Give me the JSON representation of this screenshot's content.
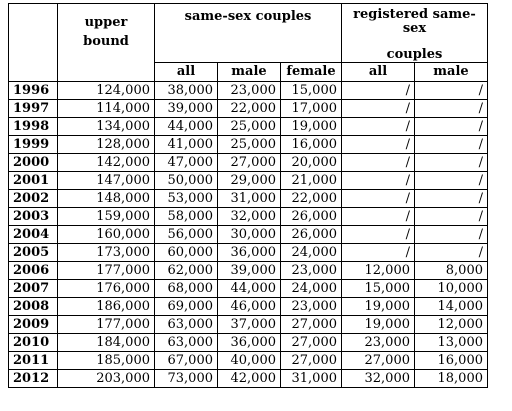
{
  "table": {
    "header": {
      "upper_bound_line1": "upper",
      "upper_bound_line2": "bound",
      "same_sex": "same-sex couples",
      "registered_line1": "registered same-sex",
      "registered_line2": "couples",
      "sub": [
        "all",
        "male",
        "female",
        "all",
        "male"
      ]
    },
    "rows": [
      {
        "year": "1996",
        "cells": [
          "124,000",
          "38,000",
          "23,000",
          "15,000",
          "/",
          "/"
        ]
      },
      {
        "year": "1997",
        "cells": [
          "114,000",
          "39,000",
          "22,000",
          "17,000",
          "/",
          "/"
        ]
      },
      {
        "year": "1998",
        "cells": [
          "134,000",
          "44,000",
          "25,000",
          "19,000",
          "/",
          "/"
        ]
      },
      {
        "year": "1999",
        "cells": [
          "128,000",
          "41,000",
          "25,000",
          "16,000",
          "/",
          "/"
        ]
      },
      {
        "year": "2000",
        "cells": [
          "142,000",
          "47,000",
          "27,000",
          "20,000",
          "/",
          "/"
        ]
      },
      {
        "year": "2001",
        "cells": [
          "147,000",
          "50,000",
          "29,000",
          "21,000",
          "/",
          "/"
        ]
      },
      {
        "year": "2002",
        "cells": [
          "148,000",
          "53,000",
          "31,000",
          "22,000",
          "/",
          "/"
        ]
      },
      {
        "year": "2003",
        "cells": [
          "159,000",
          "58,000",
          "32,000",
          "26,000",
          "/",
          "/"
        ]
      },
      {
        "year": "2004",
        "cells": [
          "160,000",
          "56,000",
          "30,000",
          "26,000",
          "/",
          "/"
        ]
      },
      {
        "year": "2005",
        "cells": [
          "173,000",
          "60,000",
          "36,000",
          "24,000",
          "/",
          "/"
        ]
      },
      {
        "year": "2006",
        "cells": [
          "177,000",
          "62,000",
          "39,000",
          "23,000",
          "12,000",
          "8,000"
        ]
      },
      {
        "year": "2007",
        "cells": [
          "176,000",
          "68,000",
          "44,000",
          "24,000",
          "15,000",
          "10,000"
        ]
      },
      {
        "year": "2008",
        "cells": [
          "186,000",
          "69,000",
          "46,000",
          "23,000",
          "19,000",
          "14,000"
        ]
      },
      {
        "year": "2009",
        "cells": [
          "177,000",
          "63,000",
          "37,000",
          "27,000",
          "19,000",
          "12,000"
        ]
      },
      {
        "year": "2010",
        "cells": [
          "184,000",
          "63,000",
          "36,000",
          "27,000",
          "23,000",
          "13,000"
        ]
      },
      {
        "year": "2011",
        "cells": [
          "185,000",
          "67,000",
          "40,000",
          "27,000",
          "27,000",
          "16,000"
        ]
      },
      {
        "year": "2012",
        "cells": [
          "203,000",
          "73,000",
          "42,000",
          "31,000",
          "32,000",
          "18,000"
        ]
      }
    ]
  }
}
